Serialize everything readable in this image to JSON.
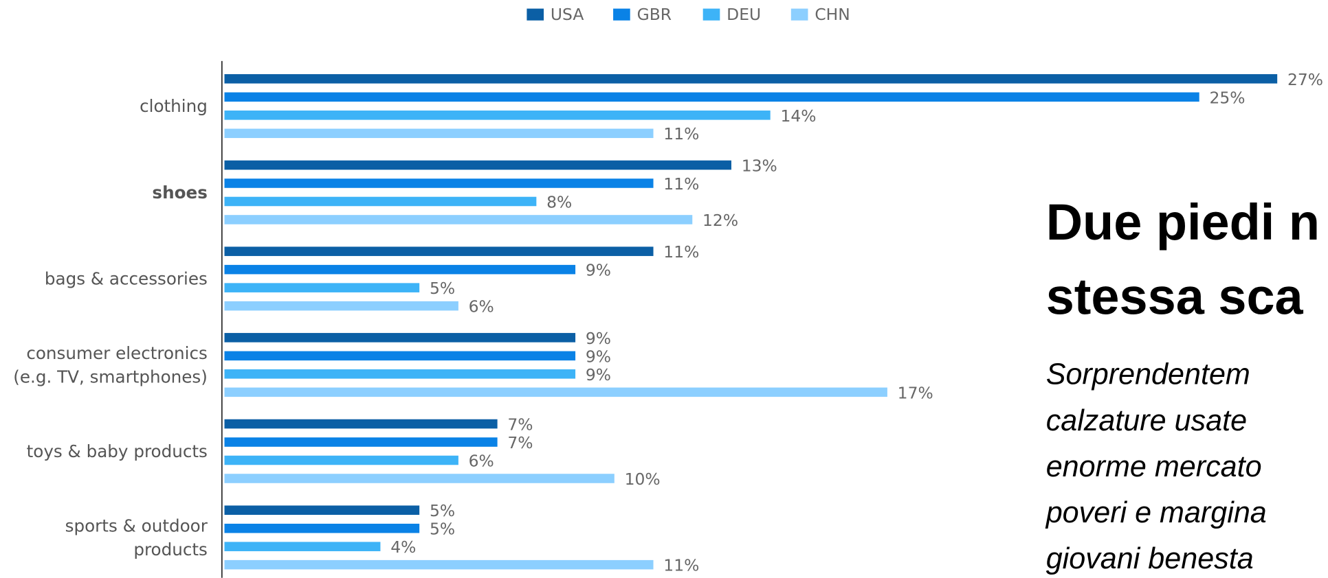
{
  "chart_data": {
    "type": "bar",
    "orientation": "horizontal",
    "categories": [
      "clothing",
      "shoes",
      "bags & accessories",
      "consumer electronics\n(e.g. TV, smartphones)",
      "toys & baby products",
      "sports & outdoor\nproducts"
    ],
    "emphasized_category": 1,
    "series": [
      {
        "name": "USA",
        "color": "#0b5fa5",
        "values": [
          27,
          13,
          11,
          9,
          7,
          5
        ],
        "value_labels": [
          "27%",
          "13%",
          "11%",
          "9%",
          "7%",
          "5%"
        ]
      },
      {
        "name": "GBR",
        "color": "#0a82e6",
        "values": [
          25,
          11,
          9,
          9,
          7,
          5
        ],
        "value_labels": [
          "25%",
          "11%",
          "9%",
          "9%",
          "7%",
          "5%"
        ]
      },
      {
        "name": "DEU",
        "color": "#3db3f7",
        "values": [
          14,
          8,
          5,
          9,
          6,
          4
        ],
        "value_labels": [
          "14%",
          "8%",
          "5%",
          "9%",
          "6%",
          "4%"
        ]
      },
      {
        "name": "CHN",
        "color": "#8ccfff",
        "values": [
          11,
          12,
          6,
          17,
          10,
          11
        ],
        "value_labels": [
          "11%",
          "12%",
          "6%",
          "17%",
          "10%",
          "11%"
        ]
      }
    ],
    "legend": "top"
  },
  "annotation": {
    "title_lines": [
      "Due piedi n",
      "stessa sca"
    ],
    "body_lines": [
      "Sorprendentem",
      "calzature usate",
      "enorme mercato",
      "poveri e margina",
      "giovani benesta"
    ]
  }
}
